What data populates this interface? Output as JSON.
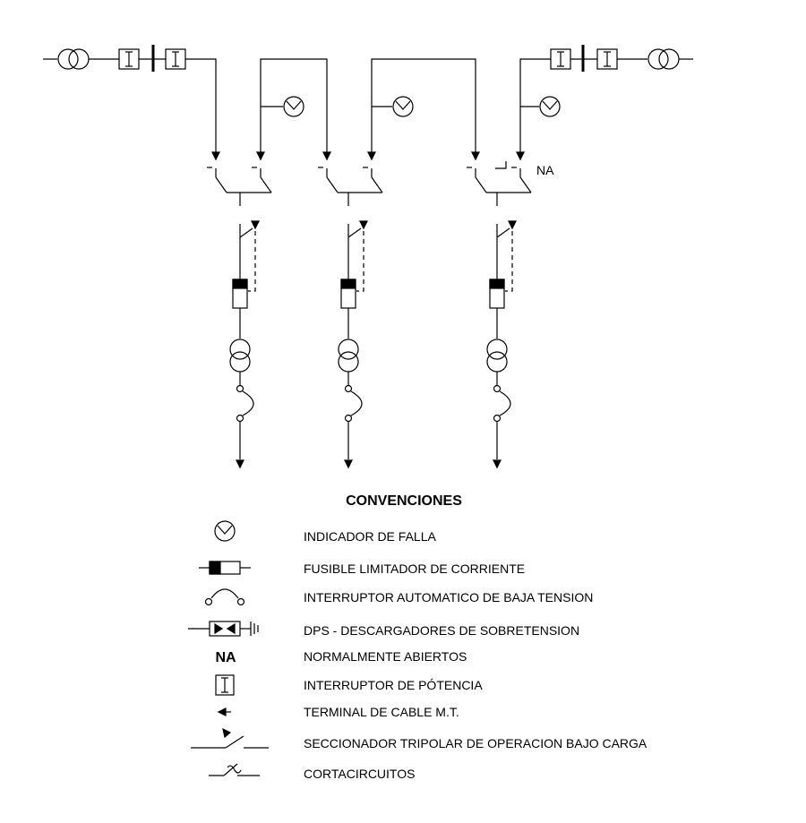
{
  "diagram": {
    "na_label": "NA",
    "legend_title": "CONVENCIONES",
    "legend": [
      {
        "symbol": "fault-indicator",
        "text": "INDICADOR DE FALLA"
      },
      {
        "symbol": "current-limiting-fuse",
        "text": "FUSIBLE LIMITADOR DE CORRIENTE"
      },
      {
        "symbol": "lv-breaker",
        "text": "INTERRUPTOR AUTOMATICO DE BAJA TENSION"
      },
      {
        "symbol": "surge-arrester",
        "text": "DPS - DESCARGADORES DE SOBRETENSION"
      },
      {
        "symbol": "na-text",
        "text": "NORMALMENTE ABIERTOS"
      },
      {
        "symbol": "power-breaker",
        "text": "INTERRUPTOR DE PÓTENCIA"
      },
      {
        "symbol": "cable-terminal",
        "text": "TERMINAL DE CABLE M.T."
      },
      {
        "symbol": "load-break-switch",
        "text": "SECCIONADOR TRIPOLAR DE OPERACION BAJO CARGA"
      },
      {
        "symbol": "fuse-cutout",
        "text": "CORTACIRCUITOS"
      }
    ]
  }
}
